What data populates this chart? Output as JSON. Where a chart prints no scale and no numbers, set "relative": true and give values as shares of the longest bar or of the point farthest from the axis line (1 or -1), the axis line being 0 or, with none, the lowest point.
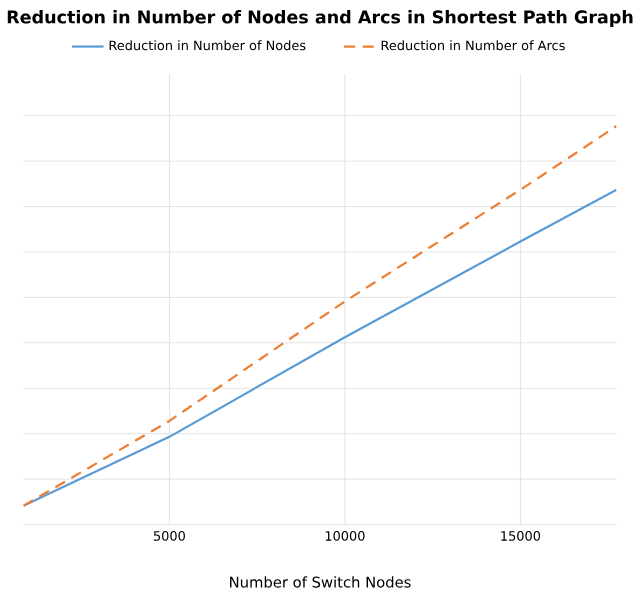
{
  "chart_data": {
    "type": "line",
    "title": "Reduction in Number of Nodes and Arcs in Shortest Path Graph",
    "xlabel": "Number  of Switch Nodes",
    "relative": true,
    "x": [
      842,
      5000,
      10000,
      15000,
      17740
    ],
    "xlim": [
      842,
      17740
    ],
    "xticks": [
      5000,
      10000,
      15000
    ],
    "grid": true,
    "legend": "top",
    "series": [
      {
        "name": "Reduction in Number of Nodes",
        "color": "#5b9bd5",
        "line_style": "solid",
        "values": [
          0.047,
          0.22,
          0.47,
          0.71,
          0.84
        ]
      },
      {
        "name": "Reduction in Number of Arcs",
        "color": "#ed7d31",
        "line_style": "dashed",
        "values": [
          0.047,
          0.26,
          0.56,
          0.84,
          1
        ]
      }
    ]
  }
}
